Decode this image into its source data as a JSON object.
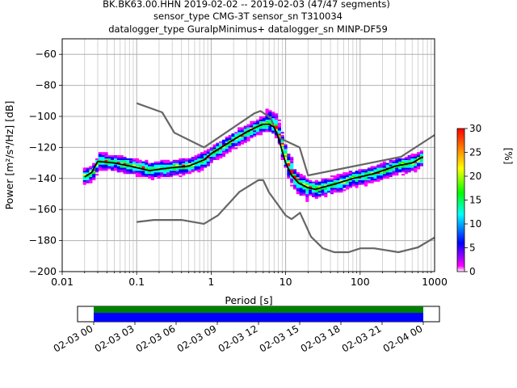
{
  "header": {
    "line1": "BK.BK63.00.HHN   2019-02-02 -- 2019-02-03  (47/47 segments)",
    "line2": "sensor_type CMG-3T sensor_sn T310034",
    "line3": "datalogger_type GuralpMinimus+ datalogger_sn MINP-DF59"
  },
  "chart_data": {
    "type": "heatmap",
    "xlabel": "Period [s]",
    "ylabel": "Power [m²/s⁴/Hz] [dB]",
    "xscale": "log",
    "xlim": [
      0.01,
      1000
    ],
    "ylim": [
      -200,
      -50
    ],
    "xticks": [
      {
        "value": 0.01,
        "label": "0.01"
      },
      {
        "value": 0.1,
        "label": "0.1"
      },
      {
        "value": 1,
        "label": "1"
      },
      {
        "value": 10,
        "label": "10"
      },
      {
        "value": 100,
        "label": "100"
      },
      {
        "value": 1000,
        "label": "1000"
      }
    ],
    "yticks": [
      -60,
      -80,
      -100,
      -120,
      -140,
      -160,
      -180,
      -200
    ],
    "grid": true,
    "colorbar": {
      "label": "[%]",
      "range": [
        0,
        30
      ],
      "ticks": [
        0,
        5,
        10,
        15,
        20,
        25,
        30
      ],
      "colors": [
        "#ffffff",
        "#ff00ff",
        "#0000ff",
        "#00ffff",
        "#00ff00",
        "#ffff00",
        "#ff8000",
        "#ff0000"
      ]
    },
    "series": [
      {
        "name": "NHNM",
        "color": "#666666",
        "x": [
          0.1,
          0.22,
          0.32,
          0.8,
          3.8,
          4.6,
          6.3,
          7.9,
          15.4,
          20,
          354.8,
          1000
        ],
        "y": [
          -91.5,
          -97.4,
          -110.5,
          -120.0,
          -98.0,
          -96.5,
          -101.0,
          -113.5,
          -120.0,
          -138.0,
          -126.0,
          -112.0
        ]
      },
      {
        "name": "NLNM",
        "color": "#666666",
        "x": [
          0.1,
          0.17,
          0.4,
          0.8,
          1.24,
          2.4,
          4.3,
          5.0,
          6.0,
          10.0,
          12.0,
          15.6,
          21.9,
          31.6,
          45.0,
          70.0,
          101.0,
          154.0,
          328.0,
          600.0,
          1000.0
        ],
        "y": [
          -168.0,
          -166.7,
          -166.7,
          -169.2,
          -163.7,
          -148.6,
          -141.1,
          -141.1,
          -149.0,
          -163.8,
          -166.2,
          -162.1,
          -177.5,
          -185.0,
          -187.5,
          -187.5,
          -185.0,
          -185.0,
          -187.5,
          -184.4,
          -178.0
        ]
      },
      {
        "name": "median",
        "color": "#000000",
        "x": [
          0.02,
          0.025,
          0.03,
          0.05,
          0.08,
          0.1,
          0.15,
          0.2,
          0.3,
          0.5,
          0.8,
          1.0,
          2.0,
          3.0,
          4.0,
          5.0,
          6.0,
          7.0,
          8.0,
          10.0,
          12.0,
          15.0,
          20.0,
          25.0,
          30.0,
          50.0,
          80.0,
          100.0,
          150.0,
          200.0,
          300.0,
          500.0,
          700.0
        ],
        "y": [
          -139,
          -136,
          -129,
          -130,
          -132,
          -133,
          -135,
          -134,
          -133,
          -132,
          -128,
          -124,
          -115,
          -110,
          -107,
          -105,
          -105,
          -107,
          -114,
          -130,
          -138,
          -143,
          -146,
          -147,
          -146,
          -143,
          -140,
          -139,
          -137,
          -135,
          -132,
          -130,
          -126
        ]
      }
    ]
  },
  "timeline": {
    "xticks": [
      "02-03 00",
      "02-03 03",
      "02-03 06",
      "02-03 09",
      "02-03 12",
      "02-03 15",
      "02-03 18",
      "02-03 21",
      "02-04 00"
    ]
  }
}
